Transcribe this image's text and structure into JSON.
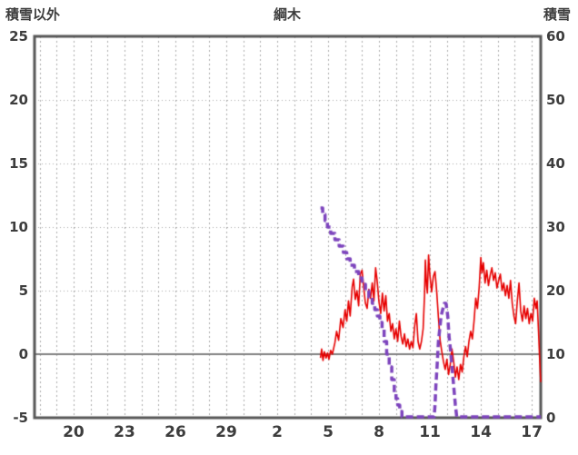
{
  "titles": {
    "chart_title": "綱木",
    "left_axis_title": "積雪以外",
    "right_axis_title": "積雪"
  },
  "chart_data": {
    "type": "line",
    "title": "綱木",
    "left_axis": {
      "title": "積雪以外",
      "min": -5,
      "max": 25,
      "ticks": [
        25,
        20,
        15,
        10,
        5,
        0,
        -5
      ]
    },
    "right_axis": {
      "title": "積雪",
      "min": 0,
      "max": 60,
      "ticks": [
        60,
        50,
        40,
        30,
        20,
        10,
        0
      ]
    },
    "x_axis": {
      "tick_labels": [
        "20",
        "23",
        "26",
        "29",
        "2",
        "5",
        "8",
        "11",
        "14",
        "17"
      ],
      "tick_days": [
        20,
        23,
        26,
        29,
        32,
        35,
        38,
        41,
        44,
        47
      ],
      "day_min": 17.7,
      "day_max": 47.53,
      "grid_day_step": 1
    },
    "colors": {
      "red_series": "#e60000",
      "purple_series": "#7d44bd",
      "grid": "#aaaaaa",
      "border": "#555555",
      "zero_line": "#808080",
      "label": "#3d3d3d",
      "background": "#ffffff"
    },
    "series": [
      {
        "name": "積雪以外",
        "axis": "left",
        "color": "#e60000",
        "style": "solid",
        "width": 1.6,
        "points": [
          [
            34.55,
            -0.3
          ],
          [
            34.62,
            0.4
          ],
          [
            34.7,
            -0.5
          ],
          [
            34.78,
            0.2
          ],
          [
            34.88,
            -0.3
          ],
          [
            34.97,
            0.1
          ],
          [
            35.05,
            -0.4
          ],
          [
            35.15,
            0.3
          ],
          [
            35.25,
            0.0
          ],
          [
            35.4,
            0.9
          ],
          [
            35.5,
            1.8
          ],
          [
            35.62,
            1.1
          ],
          [
            35.75,
            2.8
          ],
          [
            35.88,
            2.1
          ],
          [
            36.0,
            3.5
          ],
          [
            36.1,
            2.6
          ],
          [
            36.2,
            4.2
          ],
          [
            36.3,
            3.0
          ],
          [
            36.42,
            5.3
          ],
          [
            36.5,
            5.9
          ],
          [
            36.6,
            4.3
          ],
          [
            36.7,
            5.0
          ],
          [
            36.8,
            3.8
          ],
          [
            36.9,
            6.3
          ],
          [
            37.0,
            6.6
          ],
          [
            37.1,
            5.2
          ],
          [
            37.2,
            4.0
          ],
          [
            37.3,
            3.6
          ],
          [
            37.4,
            5.1
          ],
          [
            37.5,
            4.4
          ],
          [
            37.6,
            5.6
          ],
          [
            37.7,
            4.2
          ],
          [
            37.8,
            6.8
          ],
          [
            37.88,
            5.9
          ],
          [
            38.0,
            4.1
          ],
          [
            38.1,
            3.2
          ],
          [
            38.2,
            4.8
          ],
          [
            38.3,
            3.4
          ],
          [
            38.4,
            4.6
          ],
          [
            38.5,
            2.6
          ],
          [
            38.6,
            3.2
          ],
          [
            38.7,
            1.8
          ],
          [
            38.8,
            2.4
          ],
          [
            38.9,
            1.2
          ],
          [
            39.0,
            2.0
          ],
          [
            39.1,
            1.0
          ],
          [
            39.2,
            2.6
          ],
          [
            39.3,
            1.4
          ],
          [
            39.4,
            0.8
          ],
          [
            39.5,
            1.6
          ],
          [
            39.6,
            0.6
          ],
          [
            39.7,
            1.2
          ],
          [
            39.8,
            0.4
          ],
          [
            39.9,
            1.0
          ],
          [
            40.0,
            0.5
          ],
          [
            40.1,
            2.2
          ],
          [
            40.2,
            3.2
          ],
          [
            40.3,
            1.0
          ],
          [
            40.4,
            0.4
          ],
          [
            40.5,
            1.0
          ],
          [
            40.6,
            2.0
          ],
          [
            40.68,
            4.6
          ],
          [
            40.73,
            7.4
          ],
          [
            40.8,
            5.4
          ],
          [
            40.85,
            4.8
          ],
          [
            40.92,
            7.8
          ],
          [
            41.0,
            6.2
          ],
          [
            41.1,
            4.9
          ],
          [
            41.2,
            6.1
          ],
          [
            41.3,
            6.5
          ],
          [
            41.4,
            4.9
          ],
          [
            41.5,
            2.9
          ],
          [
            41.6,
            1.1
          ],
          [
            41.7,
            0.2
          ],
          [
            41.8,
            -0.6
          ],
          [
            41.9,
            -1.2
          ],
          [
            42.0,
            -0.4
          ],
          [
            42.1,
            -1.6
          ],
          [
            42.2,
            -0.8
          ],
          [
            42.3,
            0.4
          ],
          [
            42.4,
            -0.6
          ],
          [
            42.5,
            -1.8
          ],
          [
            42.6,
            -1.0
          ],
          [
            42.7,
            -2.0
          ],
          [
            42.8,
            -0.8
          ],
          [
            42.9,
            -1.4
          ],
          [
            43.0,
            -0.2
          ],
          [
            43.1,
            0.6
          ],
          [
            43.2,
            -0.2
          ],
          [
            43.3,
            1.0
          ],
          [
            43.4,
            1.8
          ],
          [
            43.5,
            1.2
          ],
          [
            43.6,
            2.6
          ],
          [
            43.7,
            4.4
          ],
          [
            43.8,
            3.6
          ],
          [
            43.9,
            5.2
          ],
          [
            44.0,
            7.6
          ],
          [
            44.07,
            6.4
          ],
          [
            44.15,
            7.2
          ],
          [
            44.25,
            5.6
          ],
          [
            44.35,
            6.6
          ],
          [
            44.45,
            5.4
          ],
          [
            44.55,
            6.2
          ],
          [
            44.65,
            6.8
          ],
          [
            44.75,
            5.8
          ],
          [
            44.85,
            6.4
          ],
          [
            44.95,
            5.2
          ],
          [
            45.05,
            5.8
          ],
          [
            45.15,
            6.3
          ],
          [
            45.25,
            5.0
          ],
          [
            45.35,
            5.6
          ],
          [
            45.45,
            4.6
          ],
          [
            45.55,
            5.4
          ],
          [
            45.65,
            4.4
          ],
          [
            45.75,
            5.8
          ],
          [
            45.85,
            4.0
          ],
          [
            45.95,
            3.0
          ],
          [
            46.05,
            2.4
          ],
          [
            46.15,
            4.2
          ],
          [
            46.25,
            5.6
          ],
          [
            46.35,
            3.4
          ],
          [
            46.45,
            2.6
          ],
          [
            46.55,
            3.8
          ],
          [
            46.65,
            2.8
          ],
          [
            46.75,
            3.6
          ],
          [
            46.85,
            2.4
          ],
          [
            46.95,
            3.2
          ],
          [
            47.05,
            2.6
          ],
          [
            47.15,
            4.4
          ],
          [
            47.25,
            3.6
          ],
          [
            47.32,
            4.2
          ],
          [
            47.4,
            1.8
          ],
          [
            47.47,
            -0.5
          ],
          [
            47.53,
            -2.2
          ]
        ]
      },
      {
        "name": "積雪",
        "axis": "right",
        "color": "#7d44bd",
        "style": "dashed",
        "width": 3.5,
        "points": [
          [
            34.55,
            33
          ],
          [
            34.68,
            33
          ],
          [
            34.68,
            32
          ],
          [
            34.82,
            32
          ],
          [
            34.82,
            31
          ],
          [
            34.96,
            31
          ],
          [
            34.96,
            30
          ],
          [
            35.15,
            30
          ],
          [
            35.15,
            29
          ],
          [
            35.4,
            29
          ],
          [
            35.4,
            28
          ],
          [
            35.65,
            28
          ],
          [
            35.65,
            27
          ],
          [
            35.9,
            27
          ],
          [
            35.9,
            26
          ],
          [
            36.1,
            26
          ],
          [
            36.1,
            25
          ],
          [
            36.3,
            25
          ],
          [
            36.3,
            24
          ],
          [
            36.55,
            24
          ],
          [
            36.55,
            23
          ],
          [
            36.8,
            23
          ],
          [
            36.8,
            22
          ],
          [
            37.0,
            22
          ],
          [
            37.0,
            21
          ],
          [
            37.2,
            21
          ],
          [
            37.2,
            20
          ],
          [
            37.4,
            20
          ],
          [
            37.4,
            19
          ],
          [
            37.6,
            19
          ],
          [
            37.6,
            18
          ],
          [
            37.75,
            18
          ],
          [
            37.75,
            17
          ],
          [
            37.9,
            17
          ],
          [
            37.9,
            16
          ],
          [
            38.05,
            16
          ],
          [
            38.05,
            15
          ],
          [
            38.18,
            15
          ],
          [
            38.18,
            14
          ],
          [
            38.3,
            14
          ],
          [
            38.3,
            12
          ],
          [
            38.45,
            12
          ],
          [
            38.45,
            10
          ],
          [
            38.6,
            10
          ],
          [
            38.6,
            8
          ],
          [
            38.75,
            8
          ],
          [
            38.75,
            6
          ],
          [
            38.9,
            6
          ],
          [
            38.9,
            4
          ],
          [
            39.0,
            4
          ],
          [
            39.0,
            3
          ],
          [
            39.1,
            3
          ],
          [
            39.1,
            2
          ],
          [
            39.22,
            2
          ],
          [
            39.22,
            1
          ],
          [
            39.35,
            1
          ],
          [
            39.35,
            0
          ],
          [
            41.25,
            0
          ],
          [
            41.3,
            2
          ],
          [
            41.35,
            5
          ],
          [
            41.42,
            8
          ],
          [
            41.5,
            12
          ],
          [
            41.58,
            14
          ],
          [
            41.66,
            16
          ],
          [
            41.75,
            17
          ],
          [
            41.85,
            18
          ],
          [
            41.95,
            18
          ],
          [
            42.05,
            16
          ],
          [
            42.12,
            13
          ],
          [
            42.2,
            11
          ],
          [
            42.3,
            8
          ],
          [
            42.4,
            5
          ],
          [
            42.5,
            2
          ],
          [
            42.58,
            0
          ],
          [
            47.53,
            0
          ]
        ]
      }
    ]
  }
}
